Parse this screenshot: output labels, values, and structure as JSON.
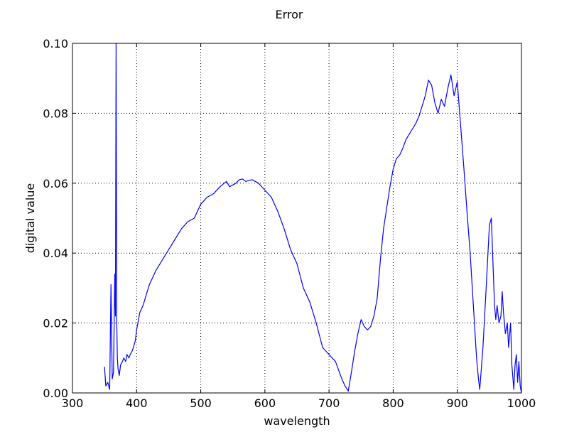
{
  "chart_data": {
    "type": "line",
    "title": "Error",
    "xlabel": "wavelength",
    "ylabel": "digital value",
    "xlim": [
      300,
      1000
    ],
    "ylim": [
      0,
      0.1
    ],
    "grid": true,
    "x_ticks": [
      300,
      400,
      500,
      600,
      700,
      800,
      900,
      1000
    ],
    "x_tick_labels": [
      "300",
      "400",
      "500",
      "600",
      "700",
      "800",
      "900",
      "1000"
    ],
    "y_ticks": [
      0,
      0.02,
      0.04,
      0.06,
      0.08,
      0.1
    ],
    "y_tick_labels": [
      "0.00",
      "0.02",
      "0.04",
      "0.06",
      "0.08",
      "0.10"
    ],
    "series_color": "#0000ff",
    "series": [
      {
        "x": [
          350,
          352,
          355,
          358,
          360,
          362,
          364,
          366,
          367,
          368,
          369,
          370,
          371,
          373,
          375,
          378,
          380,
          383,
          385,
          388,
          390,
          393,
          395,
          398,
          400,
          405,
          410,
          415,
          420,
          430,
          440,
          450,
          460,
          470,
          480,
          490,
          500,
          510,
          520,
          530,
          540,
          545,
          550,
          555,
          560,
          565,
          570,
          575,
          580,
          585,
          590,
          600,
          610,
          620,
          630,
          640,
          650,
          660,
          670,
          680,
          690,
          700,
          710,
          720,
          725,
          728,
          730,
          735,
          740,
          745,
          750,
          755,
          760,
          765,
          770,
          775,
          780,
          785,
          790,
          795,
          800,
          805,
          810,
          815,
          820,
          825,
          830,
          835,
          840,
          845,
          850,
          855,
          860,
          865,
          870,
          875,
          880,
          885,
          890,
          895,
          900,
          905,
          910,
          915,
          920,
          925,
          930,
          933,
          935,
          940,
          945,
          950,
          953,
          955,
          958,
          960,
          962,
          965,
          968,
          970,
          972,
          975,
          978,
          980,
          983,
          985,
          988,
          990,
          992,
          994,
          996,
          998,
          1000
        ],
        "y": [
          0.0075,
          0.002,
          0.003,
          0.001,
          0.031,
          0.004,
          0.006,
          0.034,
          0.022,
          0.1,
          0.021,
          0.01,
          0.007,
          0.005,
          0.008,
          0.009,
          0.01,
          0.009,
          0.011,
          0.01,
          0.011,
          0.012,
          0.013,
          0.015,
          0.018,
          0.023,
          0.025,
          0.028,
          0.031,
          0.035,
          0.038,
          0.041,
          0.044,
          0.047,
          0.049,
          0.05,
          0.054,
          0.056,
          0.057,
          0.059,
          0.0605,
          0.059,
          0.0595,
          0.06,
          0.061,
          0.0612,
          0.0605,
          0.0608,
          0.061,
          0.0605,
          0.06,
          0.058,
          0.056,
          0.052,
          0.047,
          0.041,
          0.037,
          0.03,
          0.026,
          0.02,
          0.013,
          0.011,
          0.009,
          0.004,
          0.002,
          0.0012,
          0.0005,
          0.006,
          0.012,
          0.017,
          0.021,
          0.019,
          0.018,
          0.019,
          0.022,
          0.027,
          0.038,
          0.047,
          0.053,
          0.059,
          0.064,
          0.067,
          0.068,
          0.07,
          0.0725,
          0.074,
          0.0755,
          0.077,
          0.079,
          0.082,
          0.085,
          0.0895,
          0.088,
          0.083,
          0.08,
          0.084,
          0.082,
          0.087,
          0.091,
          0.085,
          0.089,
          0.077,
          0.065,
          0.052,
          0.04,
          0.025,
          0.01,
          0.004,
          0.001,
          0.013,
          0.03,
          0.048,
          0.05,
          0.04,
          0.025,
          0.021,
          0.025,
          0.02,
          0.022,
          0.029,
          0.023,
          0.017,
          0.02,
          0.013,
          0.02,
          0.008,
          0.001,
          0.008,
          0.011,
          0.003,
          0.009,
          0.002,
          0.0
        ]
      }
    ]
  }
}
